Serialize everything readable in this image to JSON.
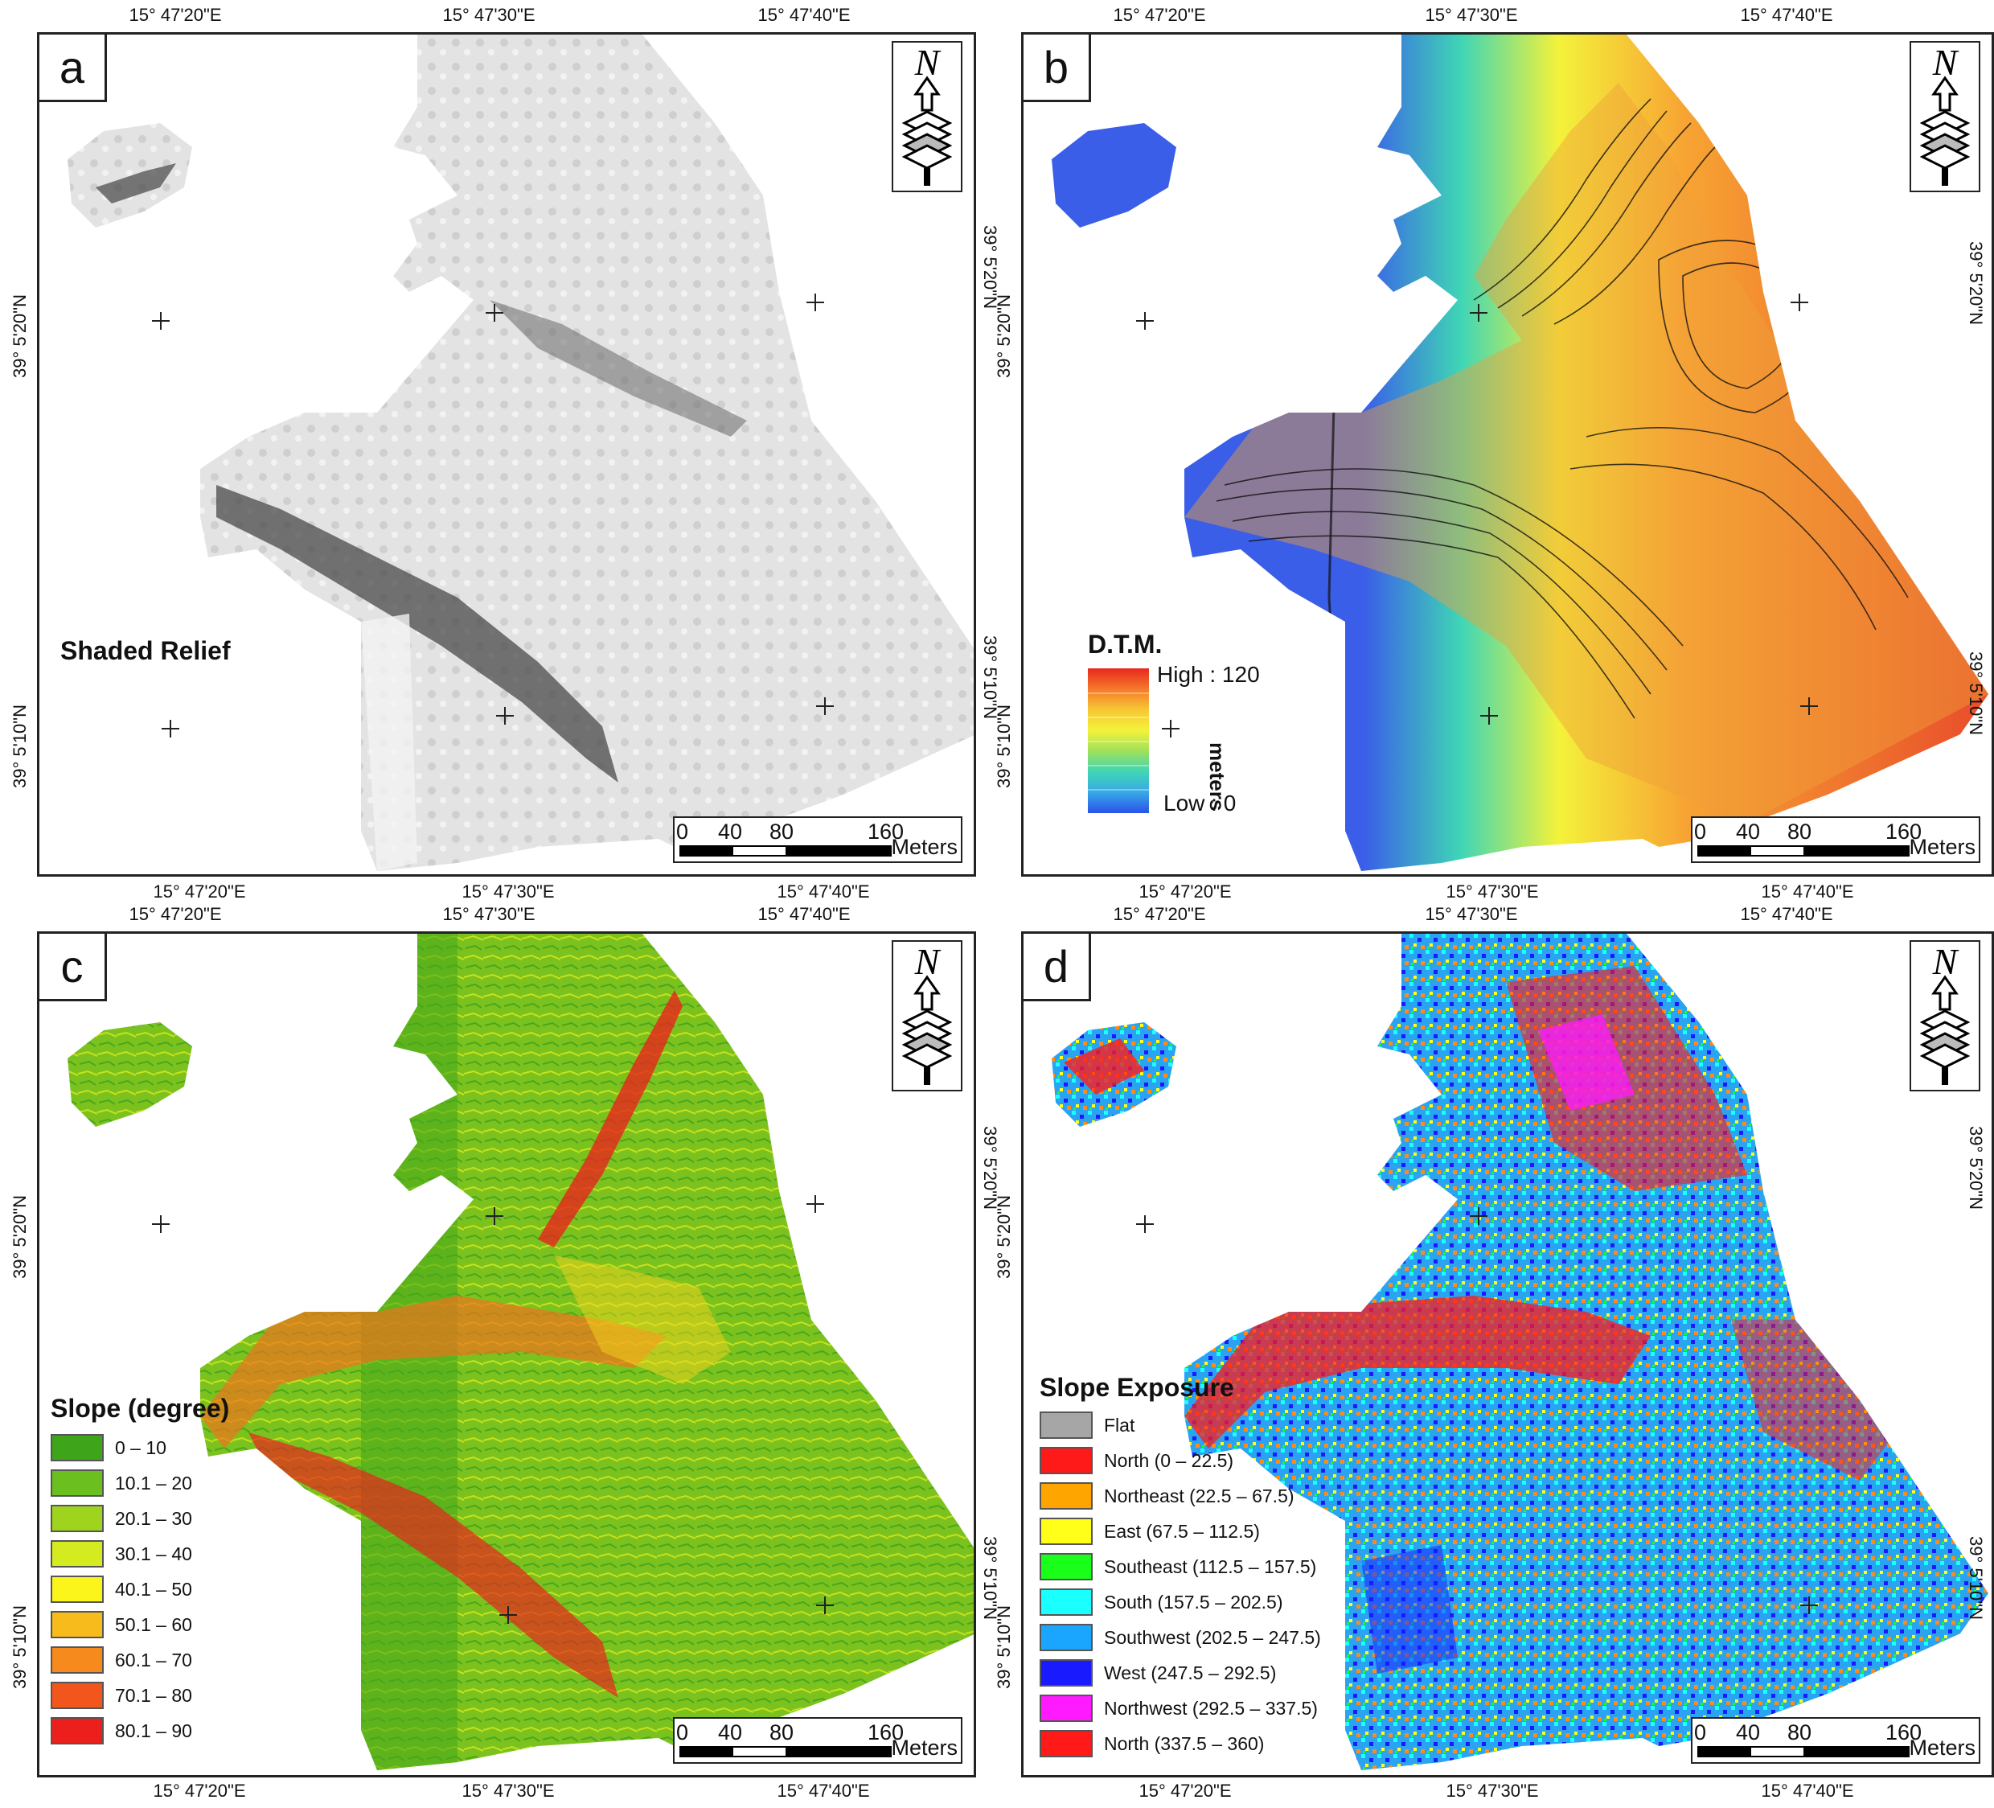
{
  "colors": {
    "panel_border": "#222222",
    "shaded_base": "#d9d9d9",
    "shaded_dark": "#555555",
    "dtm_low": "#3a5ee8",
    "dtm_high": "#e84a2a",
    "slope_green": "#5cb31e",
    "slope_red": "#e8231c"
  },
  "coordinates": {
    "top": [
      "15° 47'20\"E",
      "15° 47'30\"E",
      "15° 47'40\"E"
    ],
    "bottom": [
      "15° 47'20\"E",
      "15° 47'30\"E",
      "15° 47'40\"E"
    ],
    "side": [
      "39° 5'20\"N",
      "39° 5'10\"N"
    ]
  },
  "scalebar": {
    "labels": [
      "0",
      "40",
      "80",
      "160"
    ],
    "unit": "Meters"
  },
  "north_arrow": {
    "letter": "N",
    "icon": "north-arrow-icon"
  },
  "panels": {
    "a": {
      "letter": "a",
      "title": "Shaded Relief"
    },
    "b": {
      "letter": "b",
      "title": "D.T.M.",
      "high": "High : 120",
      "low": "Low : 0",
      "unit": "meters"
    },
    "c": {
      "letter": "c",
      "title": "Slope (degree)",
      "classes": [
        {
          "label": "0 – 10",
          "color": "#3ea51a"
        },
        {
          "label": "10.1 – 20",
          "color": "#6bbf1f"
        },
        {
          "label": "20.1 – 30",
          "color": "#9ed41e"
        },
        {
          "label": "30.1 – 40",
          "color": "#d4ec1f"
        },
        {
          "label": "40.1 – 50",
          "color": "#fbf51c"
        },
        {
          "label": "50.1 – 60",
          "color": "#f7bb1c"
        },
        {
          "label": "60.1 – 70",
          "color": "#f68a1d"
        },
        {
          "label": "70.1 – 80",
          "color": "#f2561c"
        },
        {
          "label": "80.1 – 90",
          "color": "#ec1f1c"
        }
      ]
    },
    "d": {
      "letter": "d",
      "title": "Slope Exposure",
      "classes": [
        {
          "label": "Flat",
          "color": "#a6a6a6"
        },
        {
          "label": "North (0 – 22.5)",
          "color": "#ff1a1a"
        },
        {
          "label": "Northeast (22.5 – 67.5)",
          "color": "#ffa500"
        },
        {
          "label": "East (67.5 – 112.5)",
          "color": "#ffff1a"
        },
        {
          "label": "Southeast (112.5 – 157.5)",
          "color": "#1aff1a"
        },
        {
          "label": "South (157.5 – 202.5)",
          "color": "#1affff"
        },
        {
          "label": "Southwest (202.5 – 247.5)",
          "color": "#1aa6ff"
        },
        {
          "label": "West (247.5 – 292.5)",
          "color": "#1a1aff"
        },
        {
          "label": "Northwest (292.5 – 337.5)",
          "color": "#ff1aff"
        },
        {
          "label": "North (337.5 – 360)",
          "color": "#ff1a1a"
        }
      ]
    }
  }
}
